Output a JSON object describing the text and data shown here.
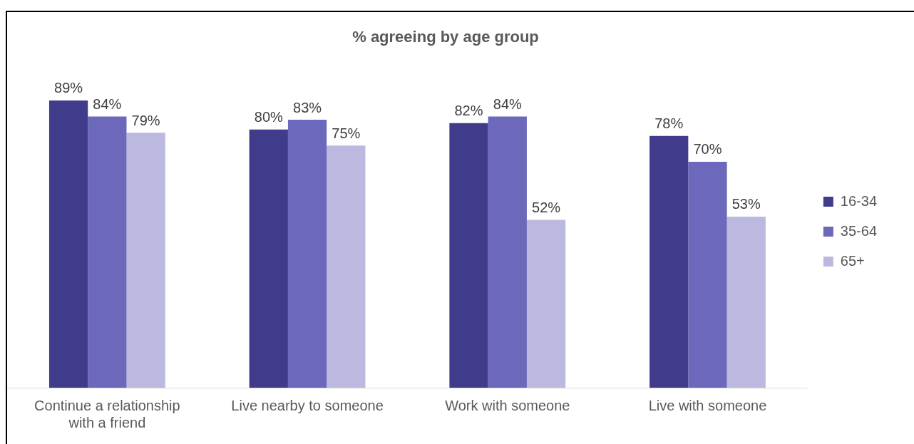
{
  "chart_data": {
    "type": "bar",
    "title": "% agreeing by age group",
    "categories": [
      "Continue a relationship with a friend",
      "Live nearby to someone",
      "Work with someone",
      "Live with someone"
    ],
    "series": [
      {
        "name": "16-34",
        "color": "#403b8a",
        "values": [
          89,
          80,
          82,
          78
        ],
        "value_labels": [
          "89%",
          "80%",
          "82%",
          "78%"
        ]
      },
      {
        "name": "35-64",
        "color": "#6c68bb",
        "values": [
          84,
          83,
          84,
          70
        ],
        "value_labels": [
          "84%",
          "83%",
          "84%",
          "70%"
        ]
      },
      {
        "name": "65+",
        "color": "#bcb9e0",
        "values": [
          79,
          75,
          52,
          53
        ],
        "value_labels": [
          "79%",
          "75%",
          "52%",
          "53%"
        ]
      }
    ],
    "legend": "right"
  }
}
